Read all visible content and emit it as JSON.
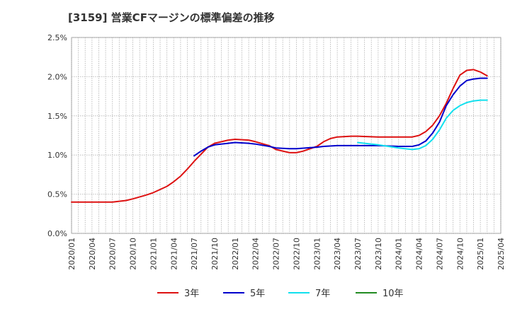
{
  "chart_data": {
    "type": "line",
    "title": "[3159]  営業CFマージンの標準偏差の推移",
    "xlabel": "",
    "ylabel": "",
    "ylim": [
      0,
      0.025
    ],
    "yticks": [
      0,
      0.005,
      0.01,
      0.015,
      0.02,
      0.025
    ],
    "ytick_labels": [
      "0.0%",
      "0.5%",
      "1.0%",
      "1.5%",
      "2.0%",
      "2.5%"
    ],
    "xlim": [
      "2020/01",
      "2025/04"
    ],
    "xtick_labels": [
      "2020/01",
      "2020/04",
      "2020/07",
      "2020/10",
      "2021/01",
      "2021/04",
      "2021/07",
      "2021/10",
      "2022/01",
      "2022/04",
      "2022/07",
      "2022/10",
      "2023/01",
      "2023/04",
      "2023/07",
      "2023/10",
      "2024/01",
      "2024/04",
      "2024/07",
      "2024/10",
      "2025/01",
      "2025/04"
    ],
    "grid": true,
    "legend_position": "bottom",
    "series": [
      {
        "name": "3年",
        "color": "#dd1111",
        "points": [
          [
            "2020/01",
            0.004
          ],
          [
            "2020/04",
            0.004
          ],
          [
            "2020/07",
            0.004
          ],
          [
            "2020/09",
            0.0042
          ],
          [
            "2020/10",
            0.0044
          ],
          [
            "2020/12",
            0.0049
          ],
          [
            "2021/01",
            0.0052
          ],
          [
            "2021/03",
            0.006
          ],
          [
            "2021/04",
            0.0066
          ],
          [
            "2021/05",
            0.0073
          ],
          [
            "2021/06",
            0.0082
          ],
          [
            "2021/07",
            0.0092
          ],
          [
            "2021/08",
            0.0101
          ],
          [
            "2021/09",
            0.011
          ],
          [
            "2021/10",
            0.0115
          ],
          [
            "2021/12",
            0.0119
          ],
          [
            "2022/01",
            0.012
          ],
          [
            "2022/03",
            0.0119
          ],
          [
            "2022/04",
            0.0117
          ],
          [
            "2022/06",
            0.0112
          ],
          [
            "2022/07",
            0.0107
          ],
          [
            "2022/09",
            0.0103
          ],
          [
            "2022/10",
            0.0103
          ],
          [
            "2022/11",
            0.0105
          ],
          [
            "2023/01",
            0.0111
          ],
          [
            "2023/02",
            0.0117
          ],
          [
            "2023/03",
            0.0121
          ],
          [
            "2023/04",
            0.0123
          ],
          [
            "2023/06",
            0.0124
          ],
          [
            "2023/07",
            0.0124
          ],
          [
            "2023/10",
            0.0123
          ],
          [
            "2024/01",
            0.0123
          ],
          [
            "2024/03",
            0.0123
          ],
          [
            "2024/04",
            0.0125
          ],
          [
            "2024/05",
            0.013
          ],
          [
            "2024/06",
            0.0138
          ],
          [
            "2024/07",
            0.015
          ],
          [
            "2024/08",
            0.0166
          ],
          [
            "2024/09",
            0.0185
          ],
          [
            "2024/10",
            0.0202
          ],
          [
            "2024/11",
            0.0208
          ],
          [
            "2024/12",
            0.0209
          ],
          [
            "2025/01",
            0.0206
          ],
          [
            "2025/02",
            0.0201
          ]
        ]
      },
      {
        "name": "5年",
        "color": "#0000cc",
        "points": [
          [
            "2021/07",
            0.0099
          ],
          [
            "2021/08",
            0.0105
          ],
          [
            "2021/09",
            0.011
          ],
          [
            "2021/10",
            0.0113
          ],
          [
            "2021/12",
            0.0115
          ],
          [
            "2022/01",
            0.0116
          ],
          [
            "2022/03",
            0.0115
          ],
          [
            "2022/04",
            0.0114
          ],
          [
            "2022/06",
            0.0111
          ],
          [
            "2022/07",
            0.0109
          ],
          [
            "2022/09",
            0.0108
          ],
          [
            "2022/10",
            0.0108
          ],
          [
            "2023/01",
            0.011
          ],
          [
            "2023/02",
            0.0111
          ],
          [
            "2023/04",
            0.0112
          ],
          [
            "2023/07",
            0.0112
          ],
          [
            "2023/10",
            0.0112
          ],
          [
            "2024/01",
            0.0111
          ],
          [
            "2024/03",
            0.0111
          ],
          [
            "2024/04",
            0.0113
          ],
          [
            "2024/05",
            0.0118
          ],
          [
            "2024/06",
            0.0128
          ],
          [
            "2024/07",
            0.0142
          ],
          [
            "2024/08",
            0.0163
          ],
          [
            "2024/09",
            0.0177
          ],
          [
            "2024/10",
            0.0188
          ],
          [
            "2024/11",
            0.0195
          ],
          [
            "2024/12",
            0.0197
          ],
          [
            "2025/01",
            0.0198
          ],
          [
            "2025/02",
            0.0198
          ]
        ]
      },
      {
        "name": "7年",
        "color": "#11e0ee",
        "points": [
          [
            "2023/07",
            0.0116
          ],
          [
            "2023/10",
            0.0113
          ],
          [
            "2024/01",
            0.0109
          ],
          [
            "2024/03",
            0.0107
          ],
          [
            "2024/04",
            0.0108
          ],
          [
            "2024/05",
            0.0112
          ],
          [
            "2024/06",
            0.012
          ],
          [
            "2024/07",
            0.0132
          ],
          [
            "2024/08",
            0.0147
          ],
          [
            "2024/09",
            0.0157
          ],
          [
            "2024/10",
            0.0163
          ],
          [
            "2024/11",
            0.0167
          ],
          [
            "2024/12",
            0.0169
          ],
          [
            "2025/01",
            0.017
          ],
          [
            "2025/02",
            0.017
          ]
        ]
      },
      {
        "name": "10年",
        "color": "#228b22",
        "points": []
      }
    ]
  }
}
